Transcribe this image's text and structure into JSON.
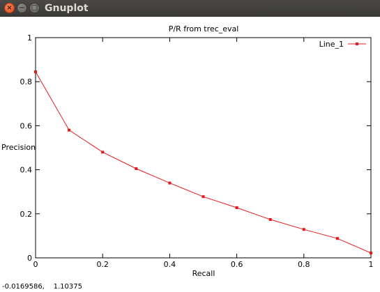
{
  "window": {
    "title": "Gnuplot",
    "buttons": {
      "close": "×",
      "minimize": "−",
      "maximize": "□"
    }
  },
  "status": {
    "coordinates": "-0.0169586,    1.10375"
  },
  "colors": {
    "series": "#e41a1c",
    "titlebar": "#3c3b37"
  },
  "chart_data": {
    "type": "line",
    "title": "P/R from trec_eval",
    "xlabel": "Recall",
    "ylabel": "Precision",
    "xlim": [
      0,
      1
    ],
    "ylim": [
      0,
      1
    ],
    "xticks": [
      "0",
      "0.2",
      "0.4",
      "0.6",
      "0.8",
      "1"
    ],
    "yticks": [
      "0",
      "0.2",
      "0.4",
      "0.6",
      "0.8",
      "1"
    ],
    "grid": false,
    "legend": "top-right",
    "series": [
      {
        "name": "Line_1",
        "x": [
          0,
          0.1,
          0.2,
          0.3,
          0.4,
          0.5,
          0.6,
          0.7,
          0.8,
          0.9,
          1.0
        ],
        "y": [
          0.845,
          0.58,
          0.48,
          0.405,
          0.34,
          0.278,
          0.228,
          0.174,
          0.129,
          0.088,
          0.022
        ]
      }
    ]
  }
}
